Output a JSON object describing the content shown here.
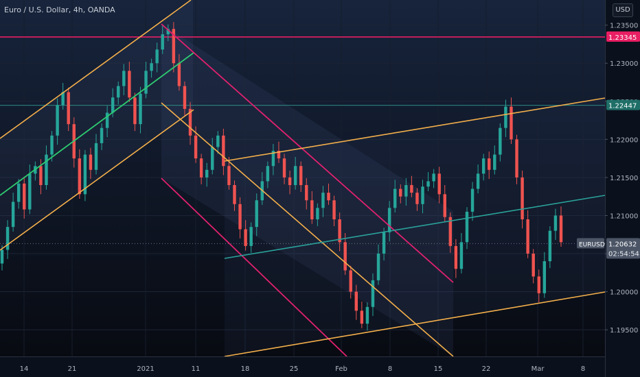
{
  "header": {
    "title": "Euro / U.S. Dollar, 4h, OANDA",
    "currency": "USD"
  },
  "colors": {
    "background": "#0b1220",
    "up_candle": "#26a69a",
    "down_candle": "#ef5350",
    "channel_orange": "#f5b04b",
    "channel_magenta": "#e0216e",
    "trend_green": "#2ecc71",
    "trend_teal": "#2aa39b",
    "resistance": "#e91e63",
    "level_teal": "#2c8d84",
    "price_label_bg": "#4b5566"
  },
  "chart_data": {
    "type": "candlestick",
    "title": "Euro / U.S. Dollar, 4h, OANDA",
    "symbol": "EURUSD",
    "x_ticks": [
      "14",
      "21",
      "2021",
      "11",
      "18",
      "25",
      "Feb",
      "8",
      "15",
      "22",
      "Mar",
      "8"
    ],
    "y_ticks": [
      1.195,
      1.2,
      1.205,
      1.21,
      1.215,
      1.22,
      1.225,
      1.23,
      1.235
    ],
    "y_tick_labels": [
      "1.19500",
      "1.20000",
      "1.20500",
      "1.21000",
      "1.21500",
      "1.22000",
      "1.22500",
      "1.23000",
      "1.23500"
    ],
    "ylim": [
      1.1915,
      1.2383
    ],
    "grid": true,
    "closes": [
      1.2055,
      1.2085,
      1.2118,
      1.2142,
      1.2108,
      1.2155,
      1.2165,
      1.214,
      1.218,
      1.2205,
      1.2245,
      1.2262,
      1.222,
      1.2175,
      1.2128,
      1.218,
      1.216,
      1.2195,
      1.2215,
      1.2235,
      1.2255,
      1.227,
      1.229,
      1.2255,
      1.222,
      1.226,
      1.229,
      1.23,
      1.2318,
      1.2338,
      1.2345,
      1.23,
      1.227,
      1.224,
      1.2205,
      1.2175,
      1.215,
      1.216,
      1.219,
      1.2205,
      1.2165,
      1.214,
      1.2115,
      1.2082,
      1.206,
      1.2085,
      1.212,
      1.2145,
      1.2165,
      1.2185,
      1.2175,
      1.215,
      1.214,
      1.2165,
      1.214,
      1.212,
      1.2095,
      1.211,
      1.213,
      1.212,
      1.2095,
      1.2065,
      1.2028,
      1.2,
      1.1975,
      1.1958,
      1.198,
      1.2015,
      1.205,
      1.2078,
      1.211,
      1.2135,
      1.2125,
      1.214,
      1.213,
      1.2115,
      1.2138,
      1.2145,
      1.2155,
      1.2128,
      1.2098,
      1.206,
      1.203,
      1.2065,
      1.2105,
      1.2135,
      1.2155,
      1.2175,
      1.216,
      1.218,
      1.2215,
      1.2243,
      1.22,
      1.215,
      1.2095,
      1.205,
      1.202,
      1.1998,
      1.204,
      1.208,
      1.21,
      1.2065
    ],
    "current_price": "1.20632",
    "countdown": "02:54:54",
    "marked_levels": [
      {
        "value": 1.23345,
        "label": "1.23345",
        "name": "resistance"
      },
      {
        "value": 1.22447,
        "label": "1.22447",
        "name": "level"
      }
    ],
    "channels": [
      {
        "name": "rising-channel",
        "color": "orange",
        "mid_color": "green"
      },
      {
        "name": "falling-channel",
        "color": "magenta",
        "mid_color": "orange"
      },
      {
        "name": "rising-channel-2",
        "color": "orange",
        "mid_color": "teal"
      }
    ]
  }
}
